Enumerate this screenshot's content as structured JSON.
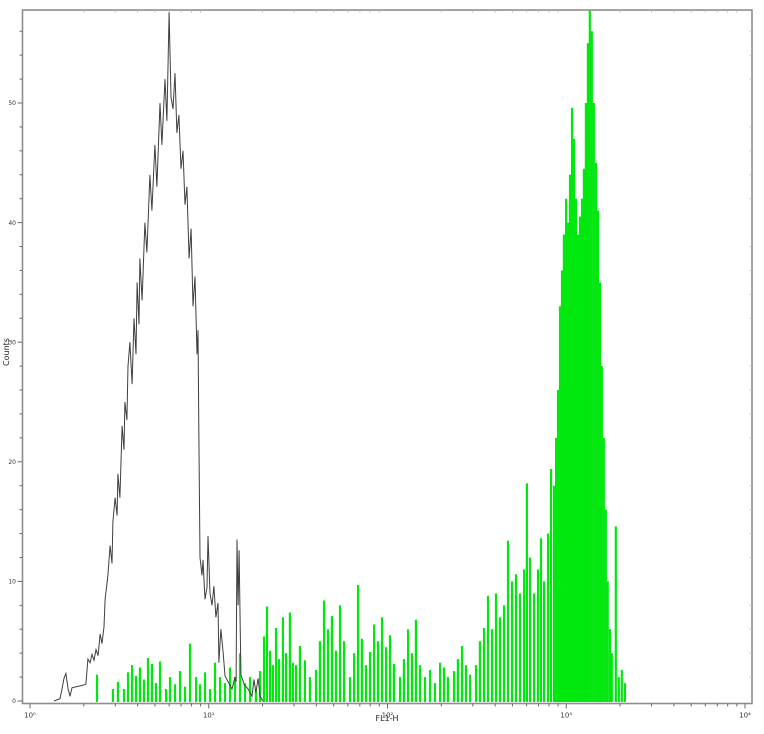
{
  "chart_data": {
    "type": "histogram",
    "title": "",
    "xlabel": "FL1-H",
    "ylabel": "Counts",
    "x_scale": "log10",
    "xlim": [
      0,
      4
    ],
    "ylim": [
      0,
      58
    ],
    "grid": false,
    "legend": "none",
    "x_tick_values": [
      0,
      1,
      2,
      3,
      4
    ],
    "x_tick_labels": [
      "10⁰",
      "10¹",
      "10²",
      "10³",
      "10⁴"
    ],
    "y_tick_values": [
      0,
      10,
      20,
      30,
      40,
      50
    ],
    "y_tick_labels": [
      "0",
      "10",
      "20",
      "30",
      "40",
      "50"
    ],
    "colors": {
      "open_series": "#3f3f3f",
      "filled_series": "#00e80e",
      "frame": "#8e8e8e",
      "tick": "#6b6b6b",
      "mirror_tick": "#bcbcbc",
      "tick_label": "#333333",
      "background": "#ffffff"
    },
    "series": [
      {
        "name": "control-open-histogram",
        "style": "open-line",
        "color": "#3f3f3f",
        "points": [
          [
            0.135,
            0
          ],
          [
            0.168,
            0.2
          ],
          [
            0.179,
            1.0
          ],
          [
            0.19,
            1.9
          ],
          [
            0.201,
            2.3
          ],
          [
            0.213,
            1.0
          ],
          [
            0.224,
            0.4
          ],
          [
            0.235,
            1.1
          ],
          [
            0.262,
            1.2
          ],
          [
            0.29,
            1.3
          ],
          [
            0.313,
            1.4
          ],
          [
            0.324,
            3.5
          ],
          [
            0.336,
            3.2
          ],
          [
            0.347,
            3.9
          ],
          [
            0.358,
            3.4
          ],
          [
            0.369,
            4.3
          ],
          [
            0.381,
            3.8
          ],
          [
            0.392,
            5.6
          ],
          [
            0.403,
            4.8
          ],
          [
            0.414,
            6.2
          ],
          [
            0.42,
            8.5
          ],
          [
            0.436,
            10.5
          ],
          [
            0.448,
            13.0
          ],
          [
            0.459,
            11.5
          ],
          [
            0.464,
            15.0
          ],
          [
            0.476,
            17.0
          ],
          [
            0.487,
            15.5
          ],
          [
            0.492,
            19.0
          ],
          [
            0.503,
            17.0
          ],
          [
            0.515,
            23.0
          ],
          [
            0.526,
            21.0
          ],
          [
            0.531,
            25.0
          ],
          [
            0.542,
            23.5
          ],
          [
            0.548,
            28.0
          ],
          [
            0.559,
            30.0
          ],
          [
            0.571,
            26.5
          ],
          [
            0.582,
            32.0
          ],
          [
            0.593,
            29.0
          ],
          [
            0.599,
            35.0
          ],
          [
            0.61,
            31.5
          ],
          [
            0.615,
            37.0
          ],
          [
            0.627,
            33.5
          ],
          [
            0.643,
            40.0
          ],
          [
            0.654,
            37.5
          ],
          [
            0.671,
            44.0
          ],
          [
            0.682,
            41.0
          ],
          [
            0.699,
            46.5
          ],
          [
            0.71,
            43.0
          ],
          [
            0.727,
            50.0
          ],
          [
            0.738,
            46.5
          ],
          [
            0.755,
            52.0
          ],
          [
            0.766,
            48.5
          ],
          [
            0.778,
            57.6
          ],
          [
            0.789,
            50.5
          ],
          [
            0.8,
            49.5
          ],
          [
            0.811,
            52.5
          ],
          [
            0.822,
            47.5
          ],
          [
            0.833,
            49.0
          ],
          [
            0.845,
            44.5
          ],
          [
            0.856,
            46.0
          ],
          [
            0.867,
            41.5
          ],
          [
            0.878,
            43.0
          ],
          [
            0.89,
            37.0
          ],
          [
            0.901,
            39.5
          ],
          [
            0.912,
            33.0
          ],
          [
            0.923,
            35.5
          ],
          [
            0.934,
            29.0
          ],
          [
            0.94,
            31.0
          ],
          [
            0.945,
            22.0
          ],
          [
            0.951,
            12.0
          ],
          [
            0.962,
            10.5
          ],
          [
            0.968,
            11.8
          ],
          [
            0.979,
            8.5
          ],
          [
            0.99,
            9.5
          ],
          [
            0.996,
            13.8
          ],
          [
            1.007,
            9.0
          ],
          [
            1.018,
            8.0
          ],
          [
            1.029,
            9.6
          ],
          [
            1.04,
            7.0
          ],
          [
            1.052,
            8.2
          ],
          [
            1.057,
            3.2
          ],
          [
            1.068,
            6.0
          ],
          [
            1.08,
            4.1
          ],
          [
            1.091,
            2.1
          ],
          [
            1.108,
            1.6
          ],
          [
            1.13,
            1.0
          ],
          [
            1.147,
            2.0
          ],
          [
            1.153,
            1.6
          ],
          [
            1.158,
            13.5
          ],
          [
            1.164,
            8.0
          ],
          [
            1.17,
            12.6
          ],
          [
            1.18,
            2.2
          ],
          [
            1.198,
            1.4
          ],
          [
            1.22,
            1.0
          ],
          [
            1.242,
            0.4
          ],
          [
            1.253,
            1.8
          ],
          [
            1.264,
            0.7
          ],
          [
            1.276,
            1.9
          ],
          [
            1.287,
            0.4
          ],
          [
            1.303,
            0
          ]
        ]
      },
      {
        "name": "sample-filled-histogram",
        "style": "filled-bars",
        "color": "#00e80e",
        "points": [
          [
            0.375,
            2.2
          ],
          [
            0.464,
            1.0
          ],
          [
            0.492,
            1.6
          ],
          [
            0.526,
            1.0
          ],
          [
            0.548,
            2.4
          ],
          [
            0.571,
            3.0
          ],
          [
            0.593,
            2.1
          ],
          [
            0.615,
            2.8
          ],
          [
            0.638,
            1.8
          ],
          [
            0.66,
            3.6
          ],
          [
            0.682,
            3.1
          ],
          [
            0.705,
            1.5
          ],
          [
            0.727,
            3.3
          ],
          [
            0.761,
            1.0
          ],
          [
            0.783,
            2.0
          ],
          [
            0.811,
            1.4
          ],
          [
            0.839,
            2.5
          ],
          [
            0.867,
            1.2
          ],
          [
            0.895,
            4.8
          ],
          [
            0.929,
            2.0
          ],
          [
            0.951,
            1.4
          ],
          [
            0.979,
            2.4
          ],
          [
            1.007,
            1.0
          ],
          [
            1.035,
            3.2
          ],
          [
            1.063,
            2.0
          ],
          [
            1.091,
            1.5
          ],
          [
            1.119,
            2.8
          ],
          [
            1.147,
            2.0
          ],
          [
            1.175,
            4.0
          ],
          [
            1.203,
            1.5
          ],
          [
            1.231,
            2.0
          ],
          [
            1.264,
            1.0
          ],
          [
            1.287,
            2.5
          ],
          [
            1.309,
            5.4
          ],
          [
            1.326,
            7.9
          ],
          [
            1.343,
            4.2
          ],
          [
            1.359,
            3.0
          ],
          [
            1.376,
            6.1
          ],
          [
            1.393,
            3.5
          ],
          [
            1.415,
            7.0
          ],
          [
            1.432,
            4.0
          ],
          [
            1.454,
            7.4
          ],
          [
            1.471,
            3.2
          ],
          [
            1.488,
            3.0
          ],
          [
            1.51,
            4.6
          ],
          [
            1.538,
            3.4
          ],
          [
            1.566,
            2.0
          ],
          [
            1.6,
            2.6
          ],
          [
            1.622,
            5.0
          ],
          [
            1.645,
            8.4
          ],
          [
            1.667,
            6.0
          ],
          [
            1.689,
            7.1
          ],
          [
            1.712,
            4.2
          ],
          [
            1.734,
            8.0
          ],
          [
            1.757,
            5.0
          ],
          [
            1.79,
            2.0
          ],
          [
            1.813,
            4.0
          ],
          [
            1.835,
            9.7
          ],
          [
            1.857,
            5.2
          ],
          [
            1.88,
            3.0
          ],
          [
            1.902,
            4.1
          ],
          [
            1.925,
            6.4
          ],
          [
            1.947,
            5.0
          ],
          [
            1.969,
            7.0
          ],
          [
            1.992,
            4.5
          ],
          [
            2.014,
            5.5
          ],
          [
            2.036,
            3.1
          ],
          [
            2.07,
            2.0
          ],
          [
            2.092,
            3.5
          ],
          [
            2.115,
            6.0
          ],
          [
            2.137,
            4.0
          ],
          [
            2.159,
            6.8
          ],
          [
            2.182,
            3.0
          ],
          [
            2.21,
            2.0
          ],
          [
            2.238,
            2.6
          ],
          [
            2.266,
            1.5
          ],
          [
            2.294,
            3.2
          ],
          [
            2.316,
            2.8
          ],
          [
            2.338,
            2.0
          ],
          [
            2.372,
            2.5
          ],
          [
            2.394,
            3.5
          ],
          [
            2.417,
            4.6
          ],
          [
            2.439,
            3.0
          ],
          [
            2.462,
            2.2
          ],
          [
            2.495,
            3.0
          ],
          [
            2.517,
            5.0
          ],
          [
            2.54,
            6.1
          ],
          [
            2.562,
            8.8
          ],
          [
            2.585,
            6.0
          ],
          [
            2.607,
            9.0
          ],
          [
            2.629,
            7.0
          ],
          [
            2.652,
            8.0
          ],
          [
            2.674,
            13.4
          ],
          [
            2.697,
            10.0
          ],
          [
            2.719,
            10.6
          ],
          [
            2.741,
            9.0
          ],
          [
            2.764,
            11.0
          ],
          [
            2.78,
            18.2
          ],
          [
            2.797,
            12.0
          ],
          [
            2.82,
            9.0
          ],
          [
            2.842,
            11.0
          ],
          [
            2.859,
            13.6
          ],
          [
            2.876,
            10.0
          ],
          [
            2.898,
            14.0
          ],
          [
            2.915,
            19.4
          ],
          [
            2.932,
            18.0
          ],
          [
            2.943,
            22.0
          ],
          [
            2.954,
            26.0
          ],
          [
            2.965,
            33.0
          ],
          [
            2.976,
            36.0
          ],
          [
            2.987,
            39.0
          ],
          [
            2.999,
            42.0
          ],
          [
            3.01,
            40.0
          ],
          [
            3.021,
            44.0
          ],
          [
            3.032,
            49.6
          ],
          [
            3.043,
            47.0
          ],
          [
            3.054,
            42.0
          ],
          [
            3.065,
            39.0
          ],
          [
            3.077,
            40.5
          ],
          [
            3.088,
            42.0
          ],
          [
            3.099,
            44.5
          ],
          [
            3.11,
            50.0
          ],
          [
            3.121,
            55.0
          ],
          [
            3.132,
            57.8
          ],
          [
            3.143,
            56.0
          ],
          [
            3.154,
            50.0
          ],
          [
            3.166,
            45.0
          ],
          [
            3.177,
            41.0
          ],
          [
            3.188,
            35.0
          ],
          [
            3.199,
            28.0
          ],
          [
            3.21,
            22.0
          ],
          [
            3.221,
            16.0
          ],
          [
            3.232,
            10.0
          ],
          [
            3.244,
            6.0
          ],
          [
            3.255,
            4.0
          ],
          [
            3.277,
            14.6
          ],
          [
            3.294,
            2.0
          ],
          [
            3.311,
            2.6
          ],
          [
            3.328,
            1.5
          ]
        ]
      }
    ]
  }
}
